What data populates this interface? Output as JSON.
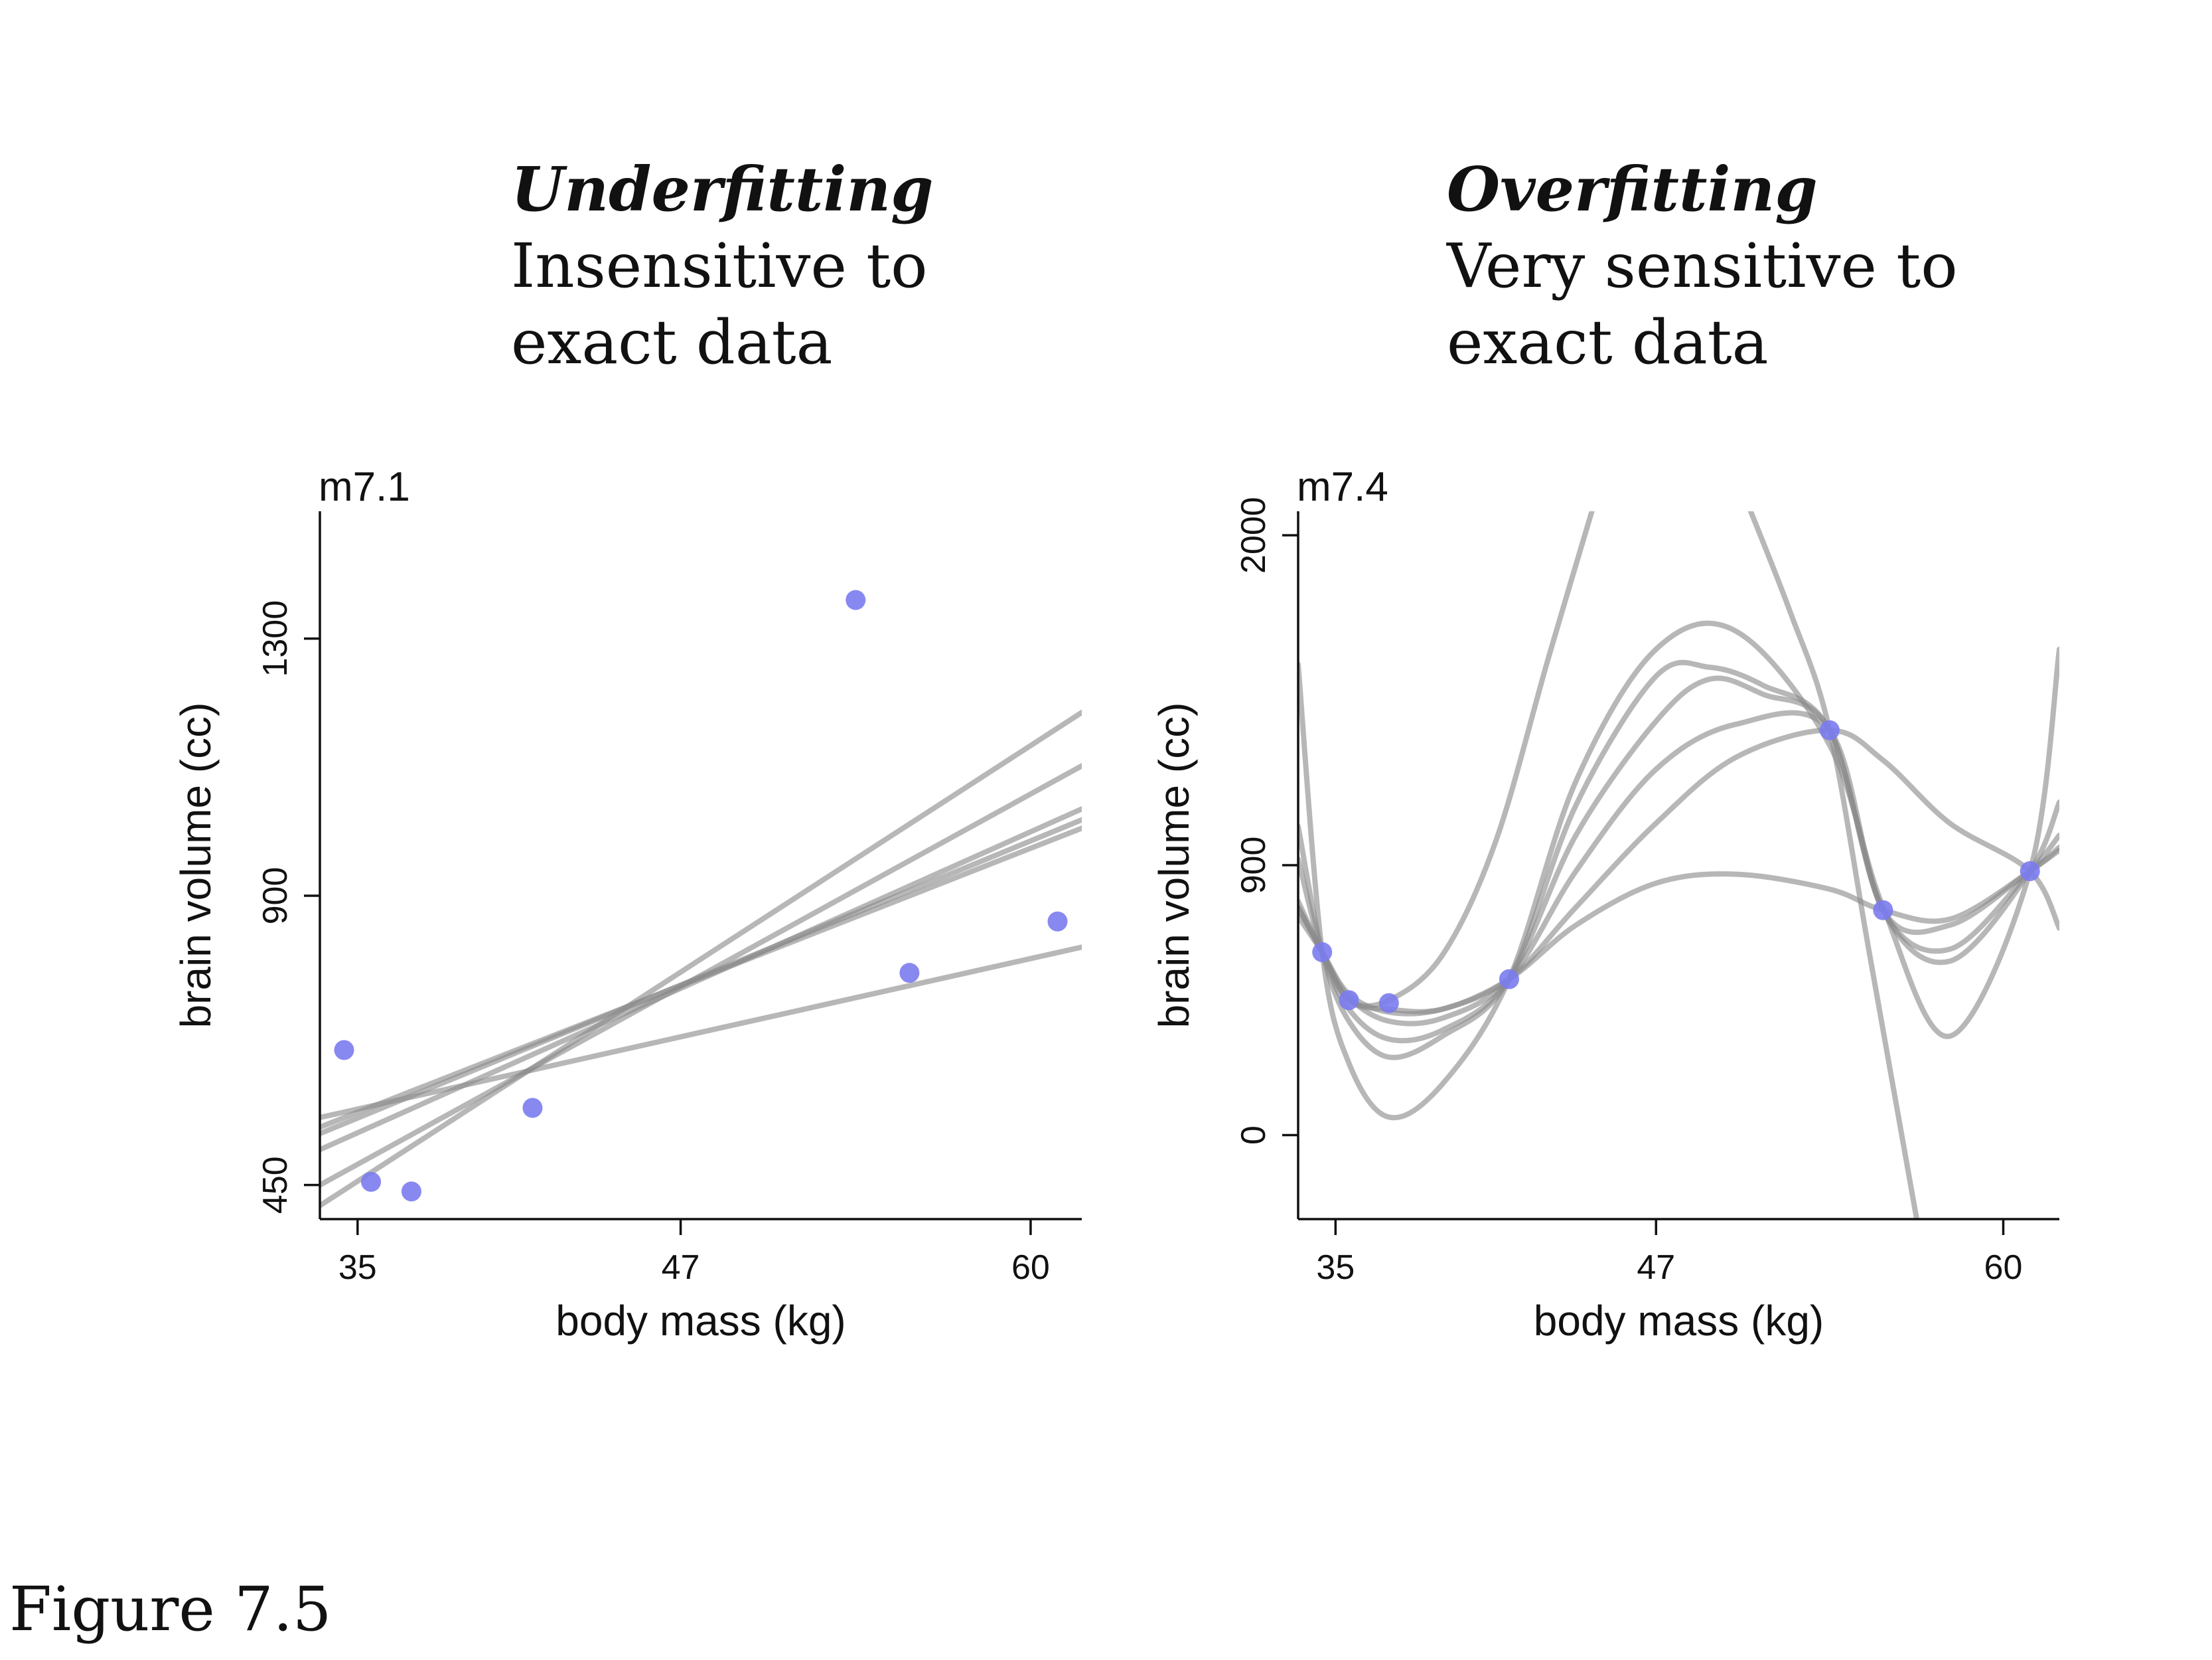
{
  "headings": {
    "left": {
      "title": "Underfitting",
      "line1": "Insensitive to",
      "line2": "exact data"
    },
    "right": {
      "title": "Overfitting",
      "line1": "Very sensitive to",
      "line2": "exact data"
    }
  },
  "figure_label": "Figure 7.5",
  "colors": {
    "points": "#7b7bf0",
    "lines": "#8a8a8a",
    "axis": "#111111"
  },
  "chart_data": [
    {
      "type": "line",
      "panel_label": "m7.1",
      "xlabel": "body mass (kg)",
      "ylabel": "brain volume (cc)",
      "xlim": [
        33.6,
        61.9
      ],
      "ylim": [
        397,
        1498
      ],
      "xticks": [
        35,
        47,
        60
      ],
      "xtick_labels": [
        "35",
        "47",
        "60"
      ],
      "yticks": [
        450,
        900,
        1300
      ],
      "ytick_labels": [
        "450",
        "900",
        "1300"
      ],
      "points": {
        "x": [
          34.5,
          35.5,
          37.0,
          41.5,
          53.5,
          55.5,
          61.0
        ],
        "y": [
          660,
          455,
          440,
          570,
          1360,
          780,
          860
        ]
      },
      "series": [
        {
          "x": [
            33.6,
            61.9
          ],
          "y": [
            418,
            1185
          ]
        },
        {
          "x": [
            33.6,
            61.9
          ],
          "y": [
            450,
            1102
          ]
        },
        {
          "x": [
            33.6,
            61.9
          ],
          "y": [
            505,
            1035
          ]
        },
        {
          "x": [
            33.6,
            61.9
          ],
          "y": [
            530,
            1018
          ]
        },
        {
          "x": [
            33.6,
            61.9
          ],
          "y": [
            540,
            1005
          ]
        },
        {
          "x": [
            33.6,
            61.9
          ],
          "y": [
            555,
            820
          ]
        }
      ]
    },
    {
      "type": "line",
      "panel_label": "m7.4",
      "xlabel": "body mass (kg)",
      "ylabel": "brain volume (cc)",
      "xlim": [
        33.6,
        62.1
      ],
      "ylim": [
        -280,
        2080
      ],
      "xticks": [
        35,
        47,
        60
      ],
      "xtick_labels": [
        "35",
        "47",
        "60"
      ],
      "yticks": [
        0,
        900,
        2000
      ],
      "ytick_labels": [
        "0",
        "900",
        "2000"
      ],
      "points": {
        "x": [
          34.5,
          35.5,
          37.0,
          41.5,
          53.5,
          55.5,
          61.0
        ],
        "y": [
          610,
          450,
          440,
          520,
          1350,
          750,
          880
        ]
      },
      "series": [
        {
          "x": [
            33.6,
            34.5,
            35.5,
            37.0,
            39.0,
            41.5,
            44.0,
            47.0,
            50.0,
            53.5,
            55.5,
            58.0,
            61.0,
            62.1
          ],
          "y": [
            1570,
            610,
            240,
            60,
            170,
            520,
            1180,
            1620,
            1680,
            1300,
            760,
            330,
            880,
            1620
          ]
        },
        {
          "x": [
            33.6,
            34.5,
            35.5,
            37.0,
            39.0,
            41.5,
            44.0,
            47.0,
            49.0,
            51.0,
            53.5,
            55.5,
            58.0,
            61.0,
            62.1
          ],
          "y": [
            1030,
            610,
            380,
            260,
            330,
            520,
            1100,
            1530,
            1560,
            1500,
            1350,
            750,
            580,
            880,
            1110
          ]
        },
        {
          "x": [
            33.6,
            34.5,
            35.5,
            37.0,
            39.0,
            41.5,
            44.0,
            47.0,
            49.0,
            51.0,
            53.5,
            55.5,
            58.0,
            61.0,
            62.1
          ],
          "y": [
            920,
            610,
            420,
            320,
            350,
            520,
            1000,
            1380,
            1520,
            1470,
            1350,
            750,
            620,
            880,
            1000
          ]
        },
        {
          "x": [
            33.6,
            34.5,
            35.5,
            37.0,
            39.0,
            41.5,
            44.0,
            47.0,
            50.0,
            53.5,
            55.5,
            58.0,
            61.0,
            62.1
          ],
          "y": [
            780,
            610,
            460,
            380,
            390,
            520,
            880,
            1220,
            1370,
            1350,
            750,
            700,
            880,
            950
          ]
        },
        {
          "x": [
            33.6,
            34.5,
            35.5,
            37.0,
            39.0,
            41.5,
            44.0,
            47.0,
            50.0,
            53.5,
            55.5,
            58.0,
            61.0,
            62.1
          ],
          "y": [
            730,
            610,
            470,
            410,
            420,
            520,
            760,
            1040,
            1260,
            1350,
            1250,
            1040,
            880,
            690
          ]
        },
        {
          "x": [
            33.6,
            34.5,
            35.5,
            37.0,
            39.0,
            41.5,
            44.0,
            47.0,
            50.0,
            53.5,
            55.5,
            58.0,
            61.0,
            62.1
          ],
          "y": [
            760,
            610,
            450,
            420,
            420,
            520,
            700,
            840,
            870,
            820,
            750,
            720,
            880,
            960
          ]
        },
        {
          "x": [
            33.6,
            34.5,
            35.5,
            37.0,
            39.0,
            41.0,
            43.0,
            45.0
          ],
          "y": [
            760,
            610,
            450,
            450,
            600,
            980,
            1600,
            2200
          ]
        },
        {
          "x": [
            50.0,
            52.0,
            53.5,
            55.0,
            57.0
          ],
          "y": [
            2200,
            1750,
            1350,
            600,
            -400
          ]
        }
      ]
    }
  ]
}
